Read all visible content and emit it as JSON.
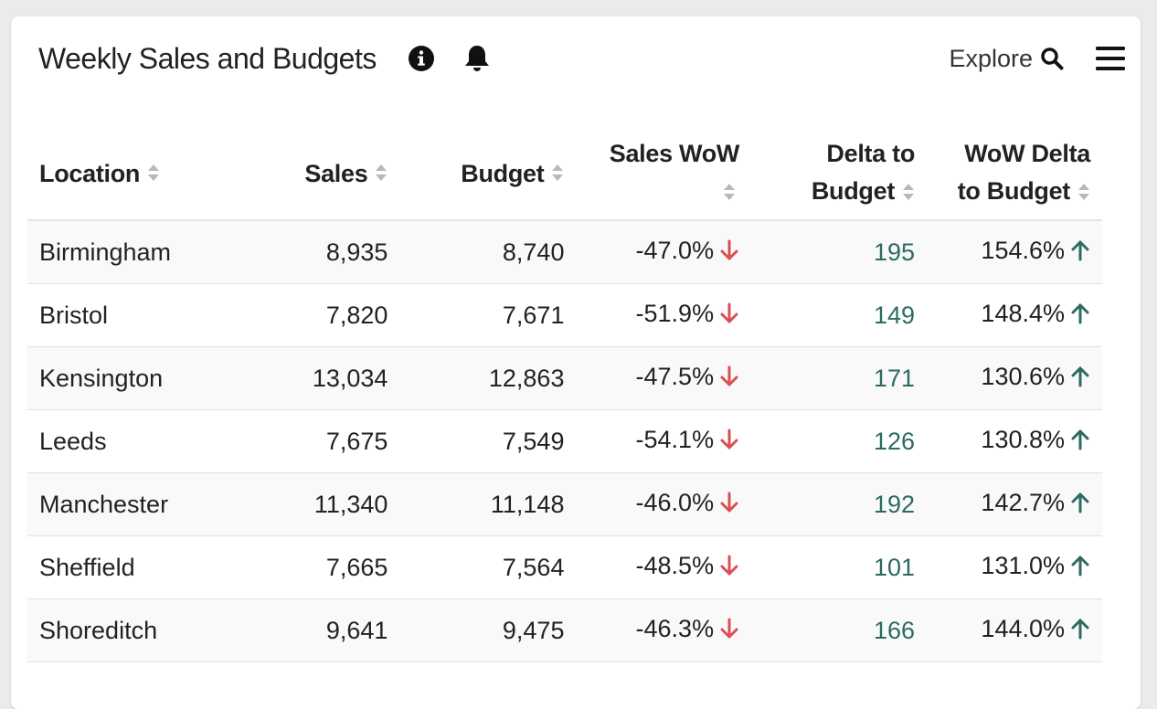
{
  "header": {
    "title": "Weekly Sales and Budgets",
    "explore_label": "Explore",
    "icons": [
      "info-icon",
      "bell-icon",
      "search-icon",
      "menu-icon"
    ]
  },
  "colors": {
    "down_arrow": "#d94f52",
    "up_arrow": "#2d6a62",
    "delta_text": "#2d6a62"
  },
  "table": {
    "columns": [
      {
        "label": "Location"
      },
      {
        "label": "Sales"
      },
      {
        "label": "Budget"
      },
      {
        "label_line1": "Sales WoW",
        "label_line2": ""
      },
      {
        "label_line1": "Delta to",
        "label_line2": "Budget"
      },
      {
        "label_line1": "WoW Delta",
        "label_line2": "to Budget"
      }
    ],
    "rows": [
      {
        "location": "Birmingham",
        "sales": "8,935",
        "budget": "8,740",
        "sales_wow": "-47.0%",
        "delta": "195",
        "wow_delta": "154.6%"
      },
      {
        "location": "Bristol",
        "sales": "7,820",
        "budget": "7,671",
        "sales_wow": "-51.9%",
        "delta": "149",
        "wow_delta": "148.4%"
      },
      {
        "location": "Kensington",
        "sales": "13,034",
        "budget": "12,863",
        "sales_wow": "-47.5%",
        "delta": "171",
        "wow_delta": "130.6%"
      },
      {
        "location": "Leeds",
        "sales": "7,675",
        "budget": "7,549",
        "sales_wow": "-54.1%",
        "delta": "126",
        "wow_delta": "130.8%"
      },
      {
        "location": "Manchester",
        "sales": "11,340",
        "budget": "11,148",
        "sales_wow": "-46.0%",
        "delta": "192",
        "wow_delta": "142.7%"
      },
      {
        "location": "Sheffield",
        "sales": "7,665",
        "budget": "7,564",
        "sales_wow": "-48.5%",
        "delta": "101",
        "wow_delta": "131.0%"
      },
      {
        "location": "Shoreditch",
        "sales": "9,641",
        "budget": "9,475",
        "sales_wow": "-46.3%",
        "delta": "166",
        "wow_delta": "144.0%"
      }
    ]
  }
}
